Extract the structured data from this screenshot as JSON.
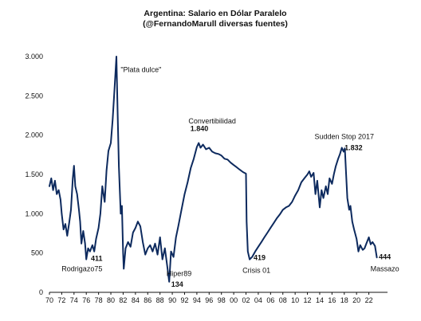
{
  "chart_data": {
    "type": "line",
    "title": "Argentina: Salario en Dólar Paralelo",
    "subtitle": "(@FernandoMarull diversas fuentes)",
    "xlabel": "",
    "ylabel": "",
    "xlim": [
      1970,
      2024
    ],
    "ylim": [
      0,
      3000
    ],
    "grid": false,
    "y_ticks": [
      0,
      500,
      1000,
      1500,
      2000,
      2500,
      3000
    ],
    "y_tick_labels": [
      "0",
      "500",
      "1.000",
      "1.500",
      "2.000",
      "2.500",
      "3.000"
    ],
    "x_ticks": [
      1970,
      1972,
      1974,
      1976,
      1978,
      1980,
      1982,
      1984,
      1986,
      1988,
      1990,
      1992,
      1994,
      1996,
      1998,
      2000,
      2002,
      2004,
      2006,
      2008,
      2010,
      2012,
      2014,
      2016,
      2018,
      2020,
      2022
    ],
    "x_tick_labels": [
      "70",
      "72",
      "74",
      "76",
      "78",
      "80",
      "82",
      "84",
      "86",
      "88",
      "90",
      "92",
      "94",
      "96",
      "98",
      "00",
      "02",
      "04",
      "06",
      "08",
      "10",
      "12",
      "14",
      "16",
      "18",
      "20",
      "22"
    ],
    "series": [
      {
        "color": "#0d2a5e",
        "points": [
          [
            1970.0,
            1350
          ],
          [
            1970.3,
            1450
          ],
          [
            1970.6,
            1300
          ],
          [
            1970.9,
            1420
          ],
          [
            1971.2,
            1250
          ],
          [
            1971.5,
            1300
          ],
          [
            1971.8,
            1180
          ],
          [
            1972.0,
            1000
          ],
          [
            1972.3,
            800
          ],
          [
            1972.6,
            870
          ],
          [
            1972.9,
            720
          ],
          [
            1973.2,
            880
          ],
          [
            1973.5,
            1050
          ],
          [
            1973.8,
            1450
          ],
          [
            1974.0,
            1610
          ],
          [
            1974.2,
            1350
          ],
          [
            1974.5,
            1250
          ],
          [
            1974.8,
            1050
          ],
          [
            1975.0,
            900
          ],
          [
            1975.2,
            620
          ],
          [
            1975.5,
            780
          ],
          [
            1975.8,
            620
          ],
          [
            1976.0,
            420
          ],
          [
            1976.3,
            560
          ],
          [
            1976.6,
            520
          ],
          [
            1977.0,
            600
          ],
          [
            1977.3,
            520
          ],
          [
            1977.6,
            680
          ],
          [
            1978.0,
            820
          ],
          [
            1978.3,
            1000
          ],
          [
            1978.6,
            1350
          ],
          [
            1979.0,
            1150
          ],
          [
            1979.3,
            1550
          ],
          [
            1979.6,
            1800
          ],
          [
            1980.0,
            1900
          ],
          [
            1980.3,
            2200
          ],
          [
            1980.6,
            2600
          ],
          [
            1980.9,
            3000
          ],
          [
            1981.1,
            2300
          ],
          [
            1981.3,
            1600
          ],
          [
            1981.6,
            1000
          ],
          [
            1981.8,
            1100
          ],
          [
            1982.0,
            500
          ],
          [
            1982.1,
            300
          ],
          [
            1982.4,
            560
          ],
          [
            1982.8,
            640
          ],
          [
            1983.2,
            580
          ],
          [
            1983.6,
            760
          ],
          [
            1984.0,
            820
          ],
          [
            1984.4,
            900
          ],
          [
            1984.8,
            840
          ],
          [
            1985.2,
            640
          ],
          [
            1985.6,
            480
          ],
          [
            1986.0,
            560
          ],
          [
            1986.4,
            600
          ],
          [
            1986.8,
            520
          ],
          [
            1987.2,
            620
          ],
          [
            1987.6,
            480
          ],
          [
            1988.0,
            700
          ],
          [
            1988.4,
            420
          ],
          [
            1988.8,
            560
          ],
          [
            1989.2,
            320
          ],
          [
            1989.5,
            134
          ],
          [
            1989.8,
            520
          ],
          [
            1990.2,
            450
          ],
          [
            1990.6,
            700
          ],
          [
            1991.0,
            850
          ],
          [
            1991.5,
            1050
          ],
          [
            1992.0,
            1250
          ],
          [
            1992.5,
            1400
          ],
          [
            1993.0,
            1580
          ],
          [
            1993.5,
            1700
          ],
          [
            1994.0,
            1850
          ],
          [
            1994.3,
            1900
          ],
          [
            1994.6,
            1840
          ],
          [
            1995.0,
            1880
          ],
          [
            1995.5,
            1820
          ],
          [
            1996.0,
            1840
          ],
          [
            1996.5,
            1790
          ],
          [
            1997.0,
            1770
          ],
          [
            1997.5,
            1760
          ],
          [
            1998.0,
            1740
          ],
          [
            1998.5,
            1700
          ],
          [
            1999.0,
            1690
          ],
          [
            1999.5,
            1650
          ],
          [
            2000.0,
            1620
          ],
          [
            2000.5,
            1590
          ],
          [
            2001.0,
            1560
          ],
          [
            2001.5,
            1530
          ],
          [
            2002.0,
            1510
          ],
          [
            2002.1,
            900
          ],
          [
            2002.3,
            520
          ],
          [
            2002.6,
            419
          ],
          [
            2003.0,
            450
          ],
          [
            2003.5,
            520
          ],
          [
            2004.0,
            580
          ],
          [
            2004.5,
            640
          ],
          [
            2005.0,
            700
          ],
          [
            2005.5,
            760
          ],
          [
            2006.0,
            820
          ],
          [
            2006.5,
            880
          ],
          [
            2007.0,
            940
          ],
          [
            2007.5,
            990
          ],
          [
            2008.0,
            1050
          ],
          [
            2008.5,
            1080
          ],
          [
            2009.0,
            1100
          ],
          [
            2009.5,
            1150
          ],
          [
            2010.0,
            1230
          ],
          [
            2010.5,
            1300
          ],
          [
            2011.0,
            1400
          ],
          [
            2011.5,
            1450
          ],
          [
            2012.0,
            1500
          ],
          [
            2012.3,
            1540
          ],
          [
            2012.6,
            1470
          ],
          [
            2013.0,
            1520
          ],
          [
            2013.3,
            1250
          ],
          [
            2013.6,
            1420
          ],
          [
            2014.0,
            1080
          ],
          [
            2014.3,
            1300
          ],
          [
            2014.6,
            1200
          ],
          [
            2015.0,
            1350
          ],
          [
            2015.3,
            1250
          ],
          [
            2015.6,
            1450
          ],
          [
            2016.0,
            1380
          ],
          [
            2016.3,
            1500
          ],
          [
            2016.6,
            1600
          ],
          [
            2017.0,
            1700
          ],
          [
            2017.3,
            1760
          ],
          [
            2017.6,
            1840
          ],
          [
            2017.9,
            1790
          ],
          [
            2018.1,
            1832
          ],
          [
            2018.3,
            1500
          ],
          [
            2018.5,
            1200
          ],
          [
            2018.8,
            1050
          ],
          [
            2019.0,
            1100
          ],
          [
            2019.3,
            900
          ],
          [
            2019.6,
            800
          ],
          [
            2020.0,
            680
          ],
          [
            2020.3,
            520
          ],
          [
            2020.6,
            600
          ],
          [
            2021.0,
            540
          ],
          [
            2021.3,
            560
          ],
          [
            2021.6,
            620
          ],
          [
            2022.0,
            700
          ],
          [
            2022.3,
            610
          ],
          [
            2022.6,
            640
          ],
          [
            2023.0,
            590
          ],
          [
            2023.3,
            444
          ]
        ]
      }
    ],
    "annotations": [
      {
        "text": "\"Plata dulce\"",
        "x": 1981.6,
        "y": 2800,
        "bold": false,
        "anchor": "start"
      },
      {
        "text": "Convertibilidad",
        "x": 1996.5,
        "y": 2150,
        "bold": false,
        "anchor": "middle"
      },
      {
        "text": "1.840",
        "x": 1994.4,
        "y": 2050,
        "bold": true,
        "anchor": "middle"
      },
      {
        "text": "Sudden Stop 2017",
        "x": 2018.0,
        "y": 1950,
        "bold": false,
        "anchor": "middle"
      },
      {
        "text": "1.832",
        "x": 2019.5,
        "y": 1810,
        "bold": true,
        "anchor": "middle"
      },
      {
        "text": "411",
        "x": 1977.7,
        "y": 400,
        "bold": true,
        "anchor": "middle"
      },
      {
        "text": "Rodrigazo75",
        "x": 1975.3,
        "y": 270,
        "bold": false,
        "anchor": "middle"
      },
      {
        "text": "Hiper89",
        "x": 1991.1,
        "y": 210,
        "bold": false,
        "anchor": "middle"
      },
      {
        "text": "134",
        "x": 1990.8,
        "y": 70,
        "bold": true,
        "anchor": "middle"
      },
      {
        "text": "419",
        "x": 2004.2,
        "y": 410,
        "bold": true,
        "anchor": "middle"
      },
      {
        "text": "Crisis 01",
        "x": 2003.7,
        "y": 250,
        "bold": false,
        "anchor": "middle"
      },
      {
        "text": "444",
        "x": 2024.6,
        "y": 420,
        "bold": true,
        "anchor": "middle"
      },
      {
        "text": "Massazo",
        "x": 2024.6,
        "y": 270,
        "bold": false,
        "anchor": "middle"
      }
    ]
  }
}
